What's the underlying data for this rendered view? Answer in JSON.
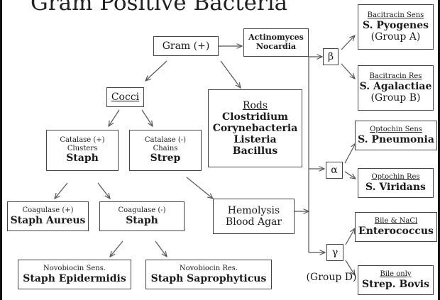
{
  "title": "Gram Positive Bacteria",
  "nodes": {
    "gram_pos": "Gram (+)",
    "actinomyces": [
      "Actinomyces",
      "Nocardia"
    ],
    "cocci": "Cocci",
    "rods": {
      "heading": "Rods",
      "items": [
        "Clostridium",
        "Corynebacteria",
        "Listeria",
        "Bacillus"
      ]
    },
    "staph": {
      "line1": "Catalase (+)",
      "line2": "Clusters",
      "name": "Staph"
    },
    "strep": {
      "line1": "Catalase (-)",
      "line2": "Chains",
      "name": "Strep"
    },
    "coag_pos": {
      "test": "Coagulase (+)",
      "name": "Staph Aureus"
    },
    "coag_neg": {
      "test": "Coagulase (-)",
      "name": "Staph"
    },
    "novo_sens": {
      "test": "Novobiocin Sens.",
      "name": "Staph Epidermidis"
    },
    "novo_res": {
      "test": "Novobiocin Res.",
      "name": "Staph Saprophyticus"
    },
    "hemolysis": [
      "Hemolysis",
      "Blood Agar"
    ],
    "beta": "β",
    "alpha": "α",
    "gamma": "γ",
    "group_d": "(Group D)",
    "pyogenes": {
      "test": "Bacitracin Sens",
      "name": "S. Pyogenes",
      "group": "(Group A)"
    },
    "agalactiae": {
      "test": "Bacitracin Res",
      "name": "S. Agalactiae",
      "group": "(Group B)"
    },
    "pneumonia": {
      "test": "Optochin Sens",
      "name": "S. Pneumonia"
    },
    "viridans": {
      "test": "Optochin Res",
      "name": "S. Viridans"
    },
    "enterococcus": {
      "test": "Bile & NaCl",
      "name": "Enterococcus"
    },
    "bovis": {
      "test": "Bile only",
      "name": "Strep. Bovis"
    }
  }
}
